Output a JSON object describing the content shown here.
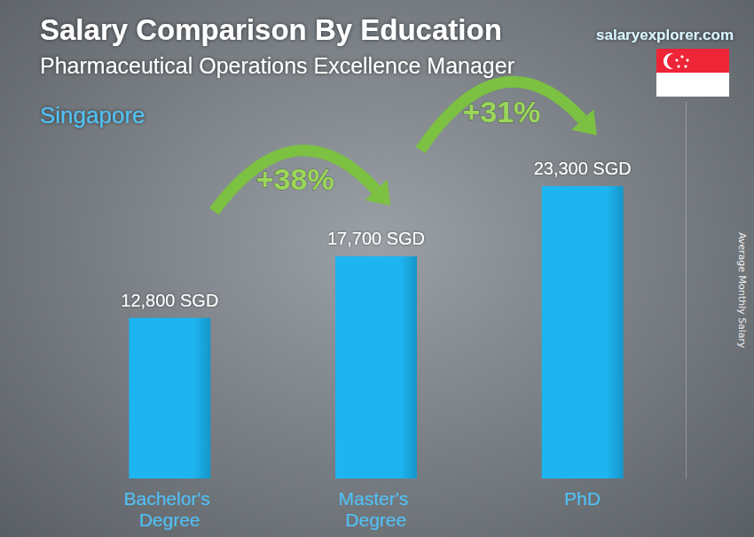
{
  "chart_data": {
    "type": "bar",
    "title": "Salary Comparison By Education",
    "subtitle": "Pharmaceutical Operations Excellence Manager",
    "location": "Singapore",
    "watermark": "salaryexplorer.com",
    "ylabel": "Average Monthly Salary",
    "categories": [
      "Bachelor's Degree",
      "Master's Degree",
      "PhD"
    ],
    "values": [
      12800,
      17700,
      23300
    ],
    "value_labels": [
      "12,800 SGD",
      "17,700 SGD",
      "23,300 SGD"
    ],
    "annotations": [
      "+38%",
      "+31%"
    ],
    "color": "#1eb4ef",
    "ylim": [
      0,
      30000
    ],
    "grid": false,
    "data_labels": true,
    "tick_labels": "x"
  }
}
